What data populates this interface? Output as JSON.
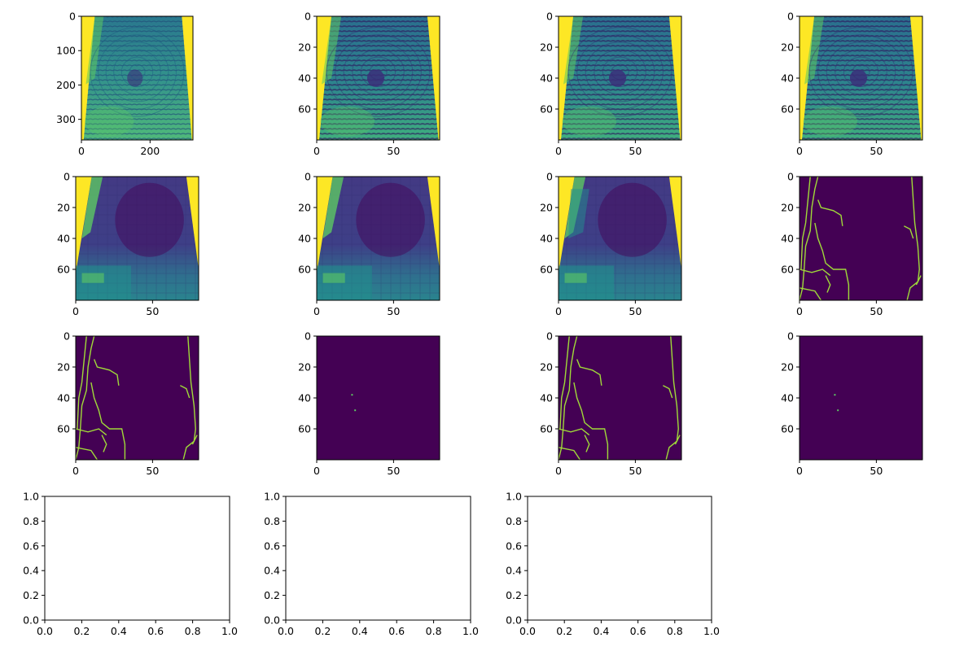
{
  "chart_data": [
    {
      "type": "heatmap",
      "image": "fingerprint-grayscale",
      "colormap": "viridis",
      "x_ticks": [
        "0",
        "200"
      ],
      "y_ticks": [
        "0",
        "100",
        "200",
        "300"
      ],
      "xlim": [
        0,
        325
      ],
      "ylim": [
        360,
        0
      ]
    },
    {
      "type": "heatmap",
      "image": "fingerprint-downsampled",
      "colormap": "viridis",
      "x_ticks": [
        "0",
        "50"
      ],
      "y_ticks": [
        "0",
        "20",
        "40",
        "60"
      ],
      "xlim": [
        0,
        80
      ],
      "ylim": [
        80,
        0
      ]
    },
    {
      "type": "heatmap",
      "image": "fingerprint-enhanced",
      "colormap": "viridis",
      "x_ticks": [
        "0",
        "50"
      ],
      "y_ticks": [
        "0",
        "20",
        "40",
        "60"
      ],
      "xlim": [
        0,
        80
      ],
      "ylim": [
        80,
        0
      ]
    },
    {
      "type": "heatmap",
      "image": "fingerprint-enhanced-2",
      "colormap": "viridis",
      "x_ticks": [
        "0",
        "50"
      ],
      "y_ticks": [
        "0",
        "20",
        "40",
        "60"
      ],
      "xlim": [
        0,
        80
      ],
      "ylim": [
        80,
        0
      ]
    },
    {
      "type": "heatmap",
      "image": "orientation-field-block",
      "colormap": "viridis",
      "x_ticks": [
        "0",
        "50"
      ],
      "y_ticks": [
        "0",
        "20",
        "40",
        "60"
      ],
      "xlim": [
        0,
        80
      ],
      "ylim": [
        80,
        0
      ]
    },
    {
      "type": "heatmap",
      "image": "orientation-field-smoothed",
      "colormap": "viridis",
      "x_ticks": [
        "0",
        "50"
      ],
      "y_ticks": [
        "0",
        "20",
        "40",
        "60"
      ],
      "xlim": [
        0,
        80
      ],
      "ylim": [
        80,
        0
      ]
    },
    {
      "type": "heatmap",
      "image": "orientation-field-smoothed-2",
      "colormap": "viridis",
      "x_ticks": [
        "0",
        "50"
      ],
      "y_ticks": [
        "0",
        "20",
        "40",
        "60"
      ],
      "xlim": [
        0,
        80
      ],
      "ylim": [
        80,
        0
      ]
    },
    {
      "type": "heatmap",
      "image": "edge-map",
      "colormap": "viridis",
      "x_ticks": [
        "0",
        "50"
      ],
      "y_ticks": [
        "0",
        "20",
        "40",
        "60"
      ],
      "xlim": [
        0,
        80
      ],
      "ylim": [
        80,
        0
      ]
    },
    {
      "type": "heatmap",
      "image": "edge-map-2",
      "colormap": "viridis",
      "x_ticks": [
        "0",
        "50"
      ],
      "y_ticks": [
        "0",
        "20",
        "40",
        "60"
      ],
      "xlim": [
        0,
        80
      ],
      "ylim": [
        80,
        0
      ]
    },
    {
      "type": "scatter",
      "image": "singular-points",
      "colormap": "viridis",
      "points": [
        [
          23,
          38
        ],
        [
          25,
          48
        ]
      ],
      "x_ticks": [
        "0",
        "50"
      ],
      "y_ticks": [
        "0",
        "20",
        "40",
        "60"
      ],
      "xlim": [
        0,
        80
      ],
      "ylim": [
        80,
        0
      ]
    },
    {
      "type": "heatmap",
      "image": "edge-map-3",
      "colormap": "viridis",
      "x_ticks": [
        "0",
        "50"
      ],
      "y_ticks": [
        "0",
        "20",
        "40",
        "60"
      ],
      "xlim": [
        0,
        80
      ],
      "ylim": [
        80,
        0
      ]
    },
    {
      "type": "scatter",
      "image": "singular-points-2",
      "colormap": "viridis",
      "points": [
        [
          23,
          38
        ],
        [
          25,
          48
        ]
      ],
      "x_ticks": [
        "0",
        "50"
      ],
      "y_ticks": [
        "0",
        "20",
        "40",
        "60"
      ],
      "xlim": [
        0,
        80
      ],
      "ylim": [
        80,
        0
      ]
    },
    {
      "type": "empty",
      "x_ticks": [
        "0.0",
        "0.2",
        "0.4",
        "0.6",
        "0.8",
        "1.0"
      ],
      "y_ticks": [
        "0.0",
        "0.2",
        "0.4",
        "0.6",
        "0.8",
        "1.0"
      ],
      "xlim": [
        0,
        1
      ],
      "ylim": [
        0,
        1
      ]
    },
    {
      "type": "empty",
      "x_ticks": [
        "0.0",
        "0.2",
        "0.4",
        "0.6",
        "0.8",
        "1.0"
      ],
      "y_ticks": [
        "0.0",
        "0.2",
        "0.4",
        "0.6",
        "0.8",
        "1.0"
      ],
      "xlim": [
        0,
        1
      ],
      "ylim": [
        0,
        1
      ]
    },
    {
      "type": "empty",
      "x_ticks": [
        "0.0",
        "0.2",
        "0.4",
        "0.6",
        "0.8",
        "1.0"
      ],
      "y_ticks": [
        "0.0",
        "0.2",
        "0.4",
        "0.6",
        "0.8",
        "1.0"
      ],
      "xlim": [
        0,
        1
      ],
      "ylim": [
        0,
        1
      ]
    }
  ],
  "colors": {
    "viridis_dark": "#440154",
    "viridis_blue": "#3b528b",
    "viridis_teal": "#21908d",
    "viridis_green": "#5dc863",
    "viridis_yellow": "#fde725",
    "edge_line": "#a0da39"
  }
}
